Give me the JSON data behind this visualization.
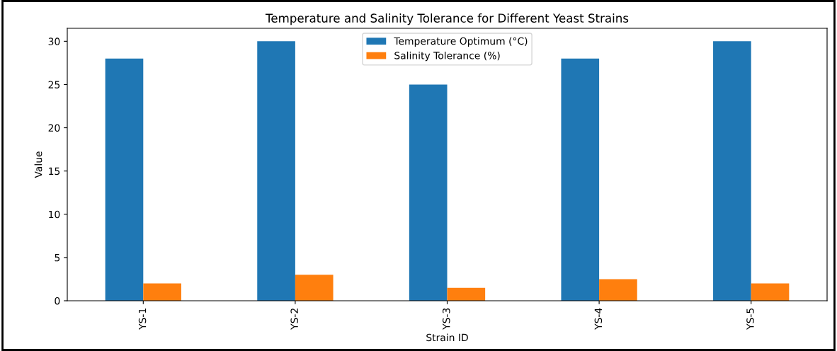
{
  "chart_data": {
    "type": "bar",
    "title": "Temperature and Salinity Tolerance for Different Yeast Strains",
    "xlabel": "Strain ID",
    "ylabel": "Value",
    "categories": [
      "YS-1",
      "YS-2",
      "YS-3",
      "YS-4",
      "YS-5"
    ],
    "series": [
      {
        "name": "Temperature Optimum (°C)",
        "color": "#1f77b4",
        "values": [
          28,
          30,
          25,
          28,
          30
        ]
      },
      {
        "name": "Salinity Tolerance (%)",
        "color": "#ff7f0e",
        "values": [
          2,
          3,
          1.5,
          2.5,
          2
        ]
      }
    ],
    "ylim": [
      0,
      31.5
    ],
    "yticks": [
      0,
      5,
      10,
      15,
      20,
      25,
      30
    ],
    "grid": false,
    "legend": "top"
  }
}
